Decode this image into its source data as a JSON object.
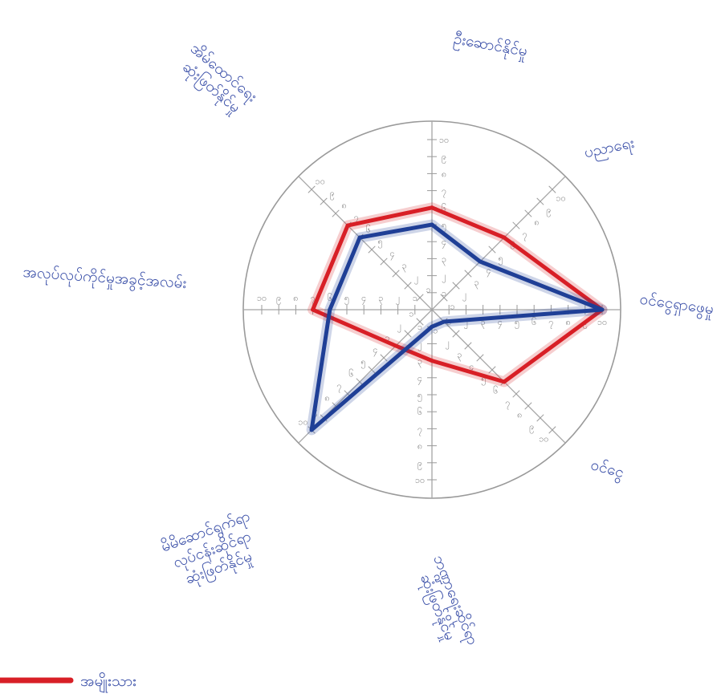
{
  "chart_data": {
    "type": "radar",
    "axes": [
      "ဦးဆောင်နိုင်မှု",
      "ပညာရေး",
      "ဝင်ငွေရှာဖွေမှု",
      "ဝင်ငွေ",
      "ဘဏ္ဍာရေးဆိုင်ရာ ဆုံးဖြတ်နိုင်မှု",
      "မိမိဆောင်ရွက်ရာ လုပ်ငန်းဆိုင်ရာ ဆုံးဖြတ်နိုင်မှု",
      "အလုပ်လုပ်ကိုင်မှုအခွင့်အလမ်း",
      "အိမ်ထောင်ရေး ဆုံးဖြတ်နိုင်မှု"
    ],
    "range": [
      0,
      10
    ],
    "ticks": [
      "၁",
      "၂",
      "၃",
      "၄",
      "၅",
      "၆",
      "၇",
      "၈",
      "၉",
      "၁၀"
    ],
    "series": [
      {
        "name": "အမျိုးသား",
        "color": "#d81f26",
        "values": [
          6,
          6,
          10,
          6,
          3,
          3,
          7,
          7
        ]
      },
      {
        "name": "",
        "color": "#1f3f96",
        "values": [
          5,
          4,
          10,
          1,
          1,
          10,
          6,
          6
        ]
      }
    ],
    "legend_position": "bottom-left"
  }
}
